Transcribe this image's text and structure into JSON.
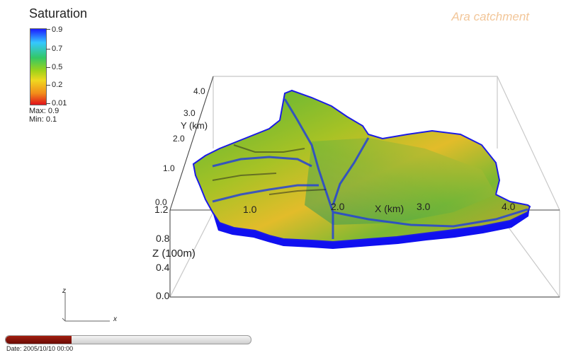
{
  "legend": {
    "title": "Saturation",
    "ticks": [
      "0.9",
      "0.7",
      "0.5",
      "0.2",
      "0.01"
    ],
    "max_text": "Max: 0.9",
    "min_text": "Min: 0.1",
    "colors": [
      "#1c1cff",
      "#35c8ff",
      "#33c866",
      "#9ed21a",
      "#f0d820",
      "#f28c1a",
      "#e0121a"
    ]
  },
  "catchment": {
    "title": "Ara catchment"
  },
  "axes": {
    "y_title": "Y (km)",
    "y_ticks": [
      "4.0",
      "3.0",
      "2.0",
      "1.0",
      "0.0"
    ],
    "x_title": "X (km)",
    "x_ticks": [
      "1.0",
      "2.0",
      "3.0",
      "4.0"
    ],
    "z_title": "Z (100m)",
    "z_ticks": [
      "1.2",
      "0.8",
      "0.4",
      "0.0"
    ],
    "origin_y_label": "0.0",
    "origin_z_label": "1.2"
  },
  "orientation": {
    "z_label": "z",
    "x_label": "x"
  },
  "time": {
    "date_text": "Date: 2005/10/10 00:00",
    "progress": 0.27
  },
  "colors": {
    "surface_blue": "#1010f0",
    "catchment_title": "#f2c699",
    "slider": "#8b1208"
  }
}
